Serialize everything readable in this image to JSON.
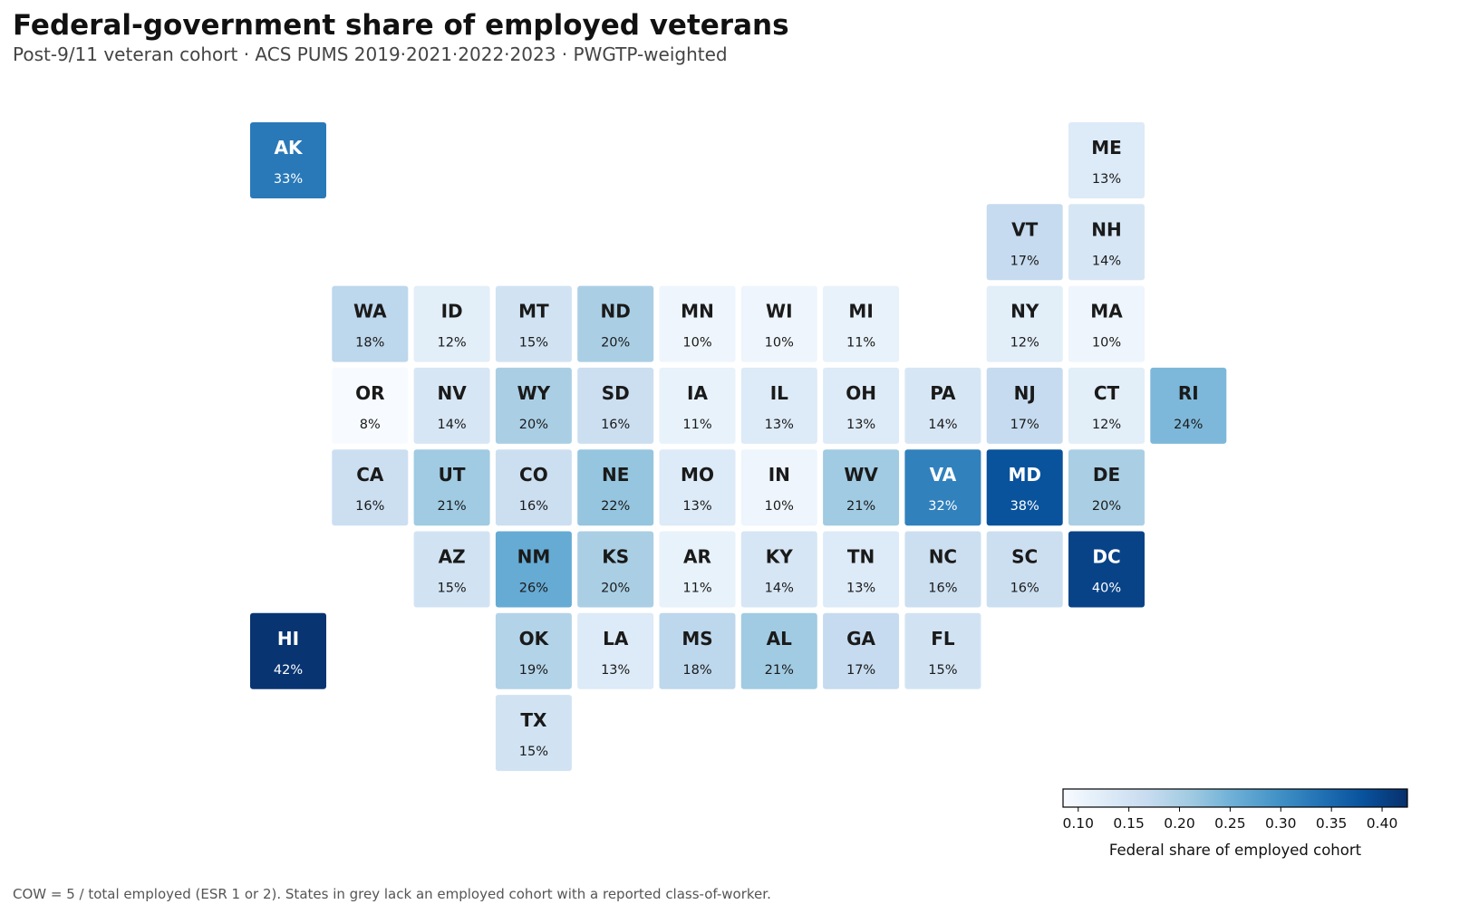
{
  "title": "Federal-government share of employed veterans",
  "subtitle": "Post-9/11 veteran cohort · ACS PUMS 2019·2021·2022·2023 · PWGTP-weighted",
  "footnote": "COW = 5 / total employed (ESR 1 or 2). States in grey lack an employed cohort with a reported class-of-worker.",
  "colorbar": {
    "label": "Federal share of employed cohort",
    "min": 0.085,
    "max": 0.425,
    "ticks": [
      "0.10",
      "0.15",
      "0.20",
      "0.25",
      "0.30",
      "0.35",
      "0.40"
    ],
    "palette": [
      "#f7fbff",
      "#deebf7",
      "#c6dbef",
      "#9ecae1",
      "#6baed6",
      "#4292c6",
      "#2171b5",
      "#08519c",
      "#08306b"
    ]
  },
  "chart_data": {
    "type": "heatmap",
    "value_format": "percent",
    "states": [
      {
        "abbr": "AK",
        "row": 0,
        "col": 0,
        "value": 0.33,
        "label": "33%"
      },
      {
        "abbr": "ME",
        "row": 0,
        "col": 10,
        "value": 0.13,
        "label": "13%"
      },
      {
        "abbr": "VT",
        "row": 1,
        "col": 9,
        "value": 0.17,
        "label": "17%"
      },
      {
        "abbr": "NH",
        "row": 1,
        "col": 10,
        "value": 0.14,
        "label": "14%"
      },
      {
        "abbr": "WA",
        "row": 2,
        "col": 1,
        "value": 0.18,
        "label": "18%"
      },
      {
        "abbr": "ID",
        "row": 2,
        "col": 2,
        "value": 0.12,
        "label": "12%"
      },
      {
        "abbr": "MT",
        "row": 2,
        "col": 3,
        "value": 0.15,
        "label": "15%"
      },
      {
        "abbr": "ND",
        "row": 2,
        "col": 4,
        "value": 0.2,
        "label": "20%"
      },
      {
        "abbr": "MN",
        "row": 2,
        "col": 5,
        "value": 0.1,
        "label": "10%"
      },
      {
        "abbr": "WI",
        "row": 2,
        "col": 6,
        "value": 0.1,
        "label": "10%"
      },
      {
        "abbr": "MI",
        "row": 2,
        "col": 7,
        "value": 0.11,
        "label": "11%"
      },
      {
        "abbr": "NY",
        "row": 2,
        "col": 9,
        "value": 0.12,
        "label": "12%"
      },
      {
        "abbr": "MA",
        "row": 2,
        "col": 10,
        "value": 0.1,
        "label": "10%"
      },
      {
        "abbr": "OR",
        "row": 3,
        "col": 1,
        "value": 0.08,
        "label": "8%"
      },
      {
        "abbr": "NV",
        "row": 3,
        "col": 2,
        "value": 0.14,
        "label": "14%"
      },
      {
        "abbr": "WY",
        "row": 3,
        "col": 3,
        "value": 0.2,
        "label": "20%"
      },
      {
        "abbr": "SD",
        "row": 3,
        "col": 4,
        "value": 0.16,
        "label": "16%"
      },
      {
        "abbr": "IA",
        "row": 3,
        "col": 5,
        "value": 0.11,
        "label": "11%"
      },
      {
        "abbr": "IL",
        "row": 3,
        "col": 6,
        "value": 0.13,
        "label": "13%"
      },
      {
        "abbr": "OH",
        "row": 3,
        "col": 7,
        "value": 0.13,
        "label": "13%"
      },
      {
        "abbr": "PA",
        "row": 3,
        "col": 8,
        "value": 0.14,
        "label": "14%"
      },
      {
        "abbr": "NJ",
        "row": 3,
        "col": 9,
        "value": 0.17,
        "label": "17%"
      },
      {
        "abbr": "CT",
        "row": 3,
        "col": 10,
        "value": 0.12,
        "label": "12%"
      },
      {
        "abbr": "RI",
        "row": 3,
        "col": 11,
        "value": 0.24,
        "label": "24%"
      },
      {
        "abbr": "CA",
        "row": 4,
        "col": 1,
        "value": 0.16,
        "label": "16%"
      },
      {
        "abbr": "UT",
        "row": 4,
        "col": 2,
        "value": 0.21,
        "label": "21%"
      },
      {
        "abbr": "CO",
        "row": 4,
        "col": 3,
        "value": 0.16,
        "label": "16%"
      },
      {
        "abbr": "NE",
        "row": 4,
        "col": 4,
        "value": 0.22,
        "label": "22%"
      },
      {
        "abbr": "MO",
        "row": 4,
        "col": 5,
        "value": 0.13,
        "label": "13%"
      },
      {
        "abbr": "IN",
        "row": 4,
        "col": 6,
        "value": 0.1,
        "label": "10%"
      },
      {
        "abbr": "WV",
        "row": 4,
        "col": 7,
        "value": 0.21,
        "label": "21%"
      },
      {
        "abbr": "VA",
        "row": 4,
        "col": 8,
        "value": 0.32,
        "label": "32%"
      },
      {
        "abbr": "MD",
        "row": 4,
        "col": 9,
        "value": 0.38,
        "label": "38%"
      },
      {
        "abbr": "DE",
        "row": 4,
        "col": 10,
        "value": 0.2,
        "label": "20%"
      },
      {
        "abbr": "AZ",
        "row": 5,
        "col": 2,
        "value": 0.15,
        "label": "15%"
      },
      {
        "abbr": "NM",
        "row": 5,
        "col": 3,
        "value": 0.26,
        "label": "26%"
      },
      {
        "abbr": "KS",
        "row": 5,
        "col": 4,
        "value": 0.2,
        "label": "20%"
      },
      {
        "abbr": "AR",
        "row": 5,
        "col": 5,
        "value": 0.11,
        "label": "11%"
      },
      {
        "abbr": "KY",
        "row": 5,
        "col": 6,
        "value": 0.14,
        "label": "14%"
      },
      {
        "abbr": "TN",
        "row": 5,
        "col": 7,
        "value": 0.13,
        "label": "13%"
      },
      {
        "abbr": "NC",
        "row": 5,
        "col": 8,
        "value": 0.16,
        "label": "16%"
      },
      {
        "abbr": "SC",
        "row": 5,
        "col": 9,
        "value": 0.16,
        "label": "16%"
      },
      {
        "abbr": "DC",
        "row": 5,
        "col": 10,
        "value": 0.4,
        "label": "40%"
      },
      {
        "abbr": "HI",
        "row": 6,
        "col": 0,
        "value": 0.42,
        "label": "42%"
      },
      {
        "abbr": "OK",
        "row": 6,
        "col": 3,
        "value": 0.19,
        "label": "19%"
      },
      {
        "abbr": "LA",
        "row": 6,
        "col": 4,
        "value": 0.13,
        "label": "13%"
      },
      {
        "abbr": "MS",
        "row": 6,
        "col": 5,
        "value": 0.18,
        "label": "18%"
      },
      {
        "abbr": "AL",
        "row": 6,
        "col": 6,
        "value": 0.21,
        "label": "21%"
      },
      {
        "abbr": "GA",
        "row": 6,
        "col": 7,
        "value": 0.17,
        "label": "17%"
      },
      {
        "abbr": "FL",
        "row": 6,
        "col": 8,
        "value": 0.15,
        "label": "15%"
      },
      {
        "abbr": "TX",
        "row": 7,
        "col": 3,
        "value": 0.15,
        "label": "15%"
      }
    ]
  }
}
